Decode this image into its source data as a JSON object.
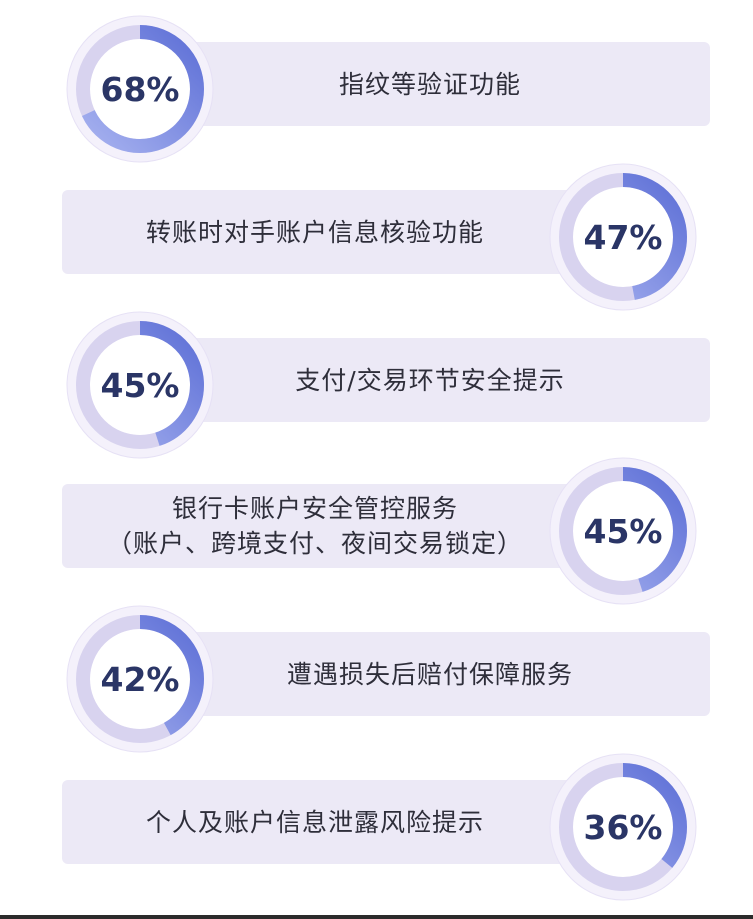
{
  "chart_data": {
    "type": "bar",
    "categories": [
      [
        "指纹等验证功能"
      ],
      [
        "转账时对手账户信息核验功能"
      ],
      [
        "支付/交易环节安全提示"
      ],
      [
        "银行卡账户安全管控服务",
        "（账户、跨境支付、夜间交易锁定）"
      ],
      [
        "遭遇损失后赔付保障服务"
      ],
      [
        "个人及账户信息泄露风险提示"
      ]
    ],
    "values": [
      68,
      47,
      45,
      45,
      42,
      36
    ],
    "value_labels": [
      "68%",
      "47%",
      "45%",
      "45%",
      "42%",
      "36%"
    ],
    "unit": "%",
    "colors": {
      "bar_bg": "#ece9f6",
      "ring_progress_dark": "#5d6fd6",
      "ring_progress_light": "#a8b3f0",
      "ring_track": "#d8d3ef",
      "ring_halo": "#f4f1fb",
      "value_text": "#2a3566",
      "label_text": "#2e2e3a"
    }
  }
}
